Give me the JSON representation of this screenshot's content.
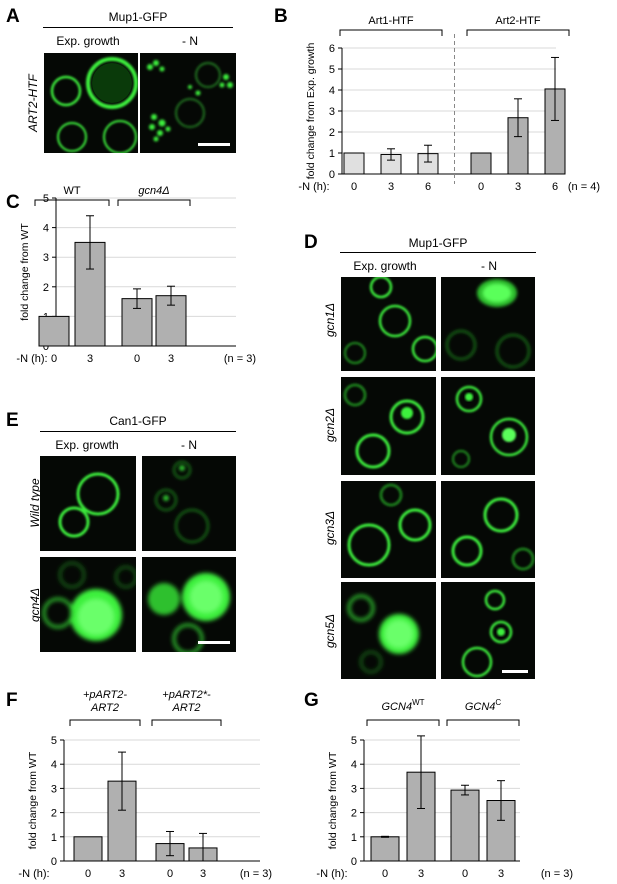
{
  "panels": {
    "A": {
      "letter": "A",
      "title": "Mup1-GFP",
      "col_labels": [
        "Exp. growth",
        "- N"
      ],
      "row_label": "ART2-HTF"
    },
    "B": {
      "letter": "B",
      "group_labels": [
        "Art1-HTF",
        "Art2-HTF"
      ],
      "ylabel": "fold change from Exp. growth",
      "xlabel": "-N (h):",
      "n_label": "(n = 4)"
    },
    "C": {
      "letter": "C",
      "group_labels": [
        "WT",
        "gcn4Δ"
      ],
      "ylabel": "fold change from WT",
      "xlabel": "-N (h):",
      "n_label": "(n = 3)"
    },
    "D": {
      "letter": "D",
      "title": "Mup1-GFP",
      "col_labels": [
        "Exp. growth",
        "- N"
      ],
      "row_labels": [
        "gcn1Δ",
        "gcn2Δ",
        "gcn3Δ",
        "gcn5Δ"
      ]
    },
    "E": {
      "letter": "E",
      "title": "Can1-GFP",
      "col_labels": [
        "Exp. growth",
        "- N"
      ],
      "row_labels": [
        "Wild type",
        "gcn4Δ"
      ]
    },
    "F": {
      "letter": "F",
      "group_labels": [
        "+pART2-\nART2",
        "+pART2*-\nART2"
      ],
      "group_label_lines": [
        [
          "+pART2-",
          "ART2"
        ],
        [
          "+pART2*-",
          "ART2"
        ]
      ],
      "ylabel": "fold change from WT",
      "xlabel": "-N (h):",
      "n_label": "(n = 3)"
    },
    "G": {
      "letter": "G",
      "group_labels": [
        "GCN4WT",
        "GCN4C"
      ],
      "group_label_parts": [
        [
          "GCN4",
          "WT"
        ],
        [
          "GCN4",
          "C"
        ]
      ],
      "ylabel": "fold change from WT",
      "xlabel": "-N (h):",
      "n_label": "(n = 3)"
    }
  },
  "colors": {
    "bar_light": "#e0e0e0",
    "bar_dark": "#b0b0b0",
    "grid": "#d9d9d9",
    "gfp": "#3cf03c"
  },
  "chart_data": [
    {
      "panel": "B",
      "type": "bar",
      "categories": [
        "0",
        "3",
        "6",
        "0",
        "3",
        "6"
      ],
      "groups": [
        "Art1-HTF",
        "Art1-HTF",
        "Art1-HTF",
        "Art2-HTF",
        "Art2-HTF",
        "Art2-HTF"
      ],
      "values": [
        1.0,
        0.93,
        0.97,
        1.0,
        2.68,
        4.05
      ],
      "errors": [
        0.0,
        0.27,
        0.4,
        0.0,
        0.9,
        1.5
      ],
      "ylim": [
        0,
        6
      ],
      "yticks": [
        0,
        1,
        2,
        3,
        4,
        5,
        6
      ],
      "ylabel": "fold change from Exp. growth",
      "xlabel": "-N (h):"
    },
    {
      "panel": "C",
      "type": "bar",
      "categories": [
        "0",
        "3",
        "0",
        "3"
      ],
      "groups": [
        "WT",
        "WT",
        "gcn4Δ",
        "gcn4Δ"
      ],
      "values": [
        1.0,
        3.5,
        1.6,
        1.7
      ],
      "errors": [
        0.0,
        0.9,
        0.33,
        0.32
      ],
      "ylim": [
        0,
        5
      ],
      "yticks": [
        0,
        1,
        2,
        3,
        4,
        5
      ],
      "ylabel": "fold change from WT",
      "xlabel": "-N (h):"
    },
    {
      "panel": "F",
      "type": "bar",
      "categories": [
        "0",
        "3",
        "0",
        "3"
      ],
      "groups": [
        "+pART2-ART2",
        "+pART2-ART2",
        "+pART2*-ART2",
        "+pART2*-ART2"
      ],
      "values": [
        1.0,
        3.3,
        0.72,
        0.54
      ],
      "errors": [
        0.0,
        1.2,
        0.5,
        0.6
      ],
      "ylim": [
        0,
        5
      ],
      "yticks": [
        0,
        1,
        2,
        3,
        4,
        5
      ],
      "ylabel": "fold change from WT",
      "xlabel": "-N (h):"
    },
    {
      "panel": "G",
      "type": "bar",
      "categories": [
        "0",
        "3",
        "0",
        "3"
      ],
      "groups": [
        "GCN4WT",
        "GCN4WT",
        "GCN4C",
        "GCN4C"
      ],
      "values": [
        1.0,
        3.67,
        2.93,
        2.5
      ],
      "errors": [
        0.02,
        1.5,
        0.2,
        0.82
      ],
      "ylim": [
        0,
        5
      ],
      "yticks": [
        0,
        1,
        2,
        3,
        4,
        5
      ],
      "ylabel": "fold change from WT",
      "xlabel": "-N (h):"
    }
  ]
}
